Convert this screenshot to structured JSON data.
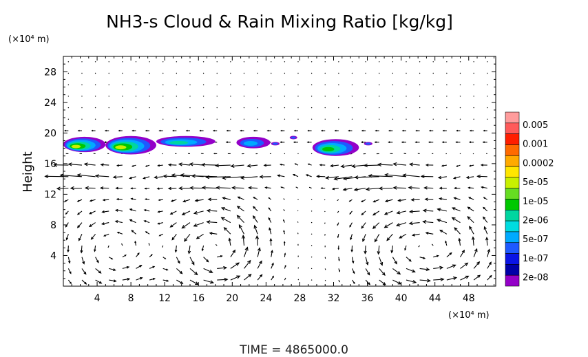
{
  "chart_data": {
    "type": "heatmap",
    "title": "NH3-s Cloud & Rain Mixing Ratio [kg/kg]",
    "ylabel": "Height",
    "y_unit": "(×10⁴ m)",
    "x_unit": "(×10⁴ m)",
    "x_ticks": [
      "4",
      "8",
      "12",
      "16",
      "20",
      "24",
      "28",
      "32",
      "36",
      "40",
      "44",
      "48"
    ],
    "y_ticks": [
      "4",
      "8",
      "12",
      "16",
      "20",
      "24",
      "28"
    ],
    "xlim": [
      0,
      51.2
    ],
    "ylim": [
      0,
      30
    ],
    "colorbar": {
      "labels": [
        "0.005",
        "0.001",
        "0.0002",
        "5e-05",
        "1e-05",
        "2e-06",
        "5e-07",
        "1e-07",
        "2e-08"
      ],
      "colors": [
        "#ff9c9c",
        "#ff5a5a",
        "#ff1e00",
        "#ff6a00",
        "#ffaa00",
        "#ffe600",
        "#c8f000",
        "#66dd22",
        "#00c800",
        "#00d6a0",
        "#00dce0",
        "#00aaff",
        "#1e5aff",
        "#0a14e6",
        "#0000a8",
        "#9400c8"
      ]
    },
    "cloud_regions": [
      {
        "x_range": [
          0,
          5
        ],
        "y_range": [
          17.5,
          19.5
        ],
        "max_level": "5e-05"
      },
      {
        "x_range": [
          5,
          11
        ],
        "y_range": [
          17.2,
          19.6
        ],
        "max_level": "5e-05"
      },
      {
        "x_range": [
          11,
          18
        ],
        "y_range": [
          18.2,
          19.6
        ],
        "max_level": "2e-06"
      },
      {
        "x_range": [
          20.5,
          24.5
        ],
        "y_range": [
          18.0,
          19.5
        ],
        "max_level": "5e-07"
      },
      {
        "x_range": [
          29.5,
          35
        ],
        "y_range": [
          17.0,
          19.2
        ],
        "max_level": "1e-05"
      }
    ],
    "vectors": "wind velocity vector field (x, z)",
    "footer": "TIME  =  4865000.0"
  }
}
